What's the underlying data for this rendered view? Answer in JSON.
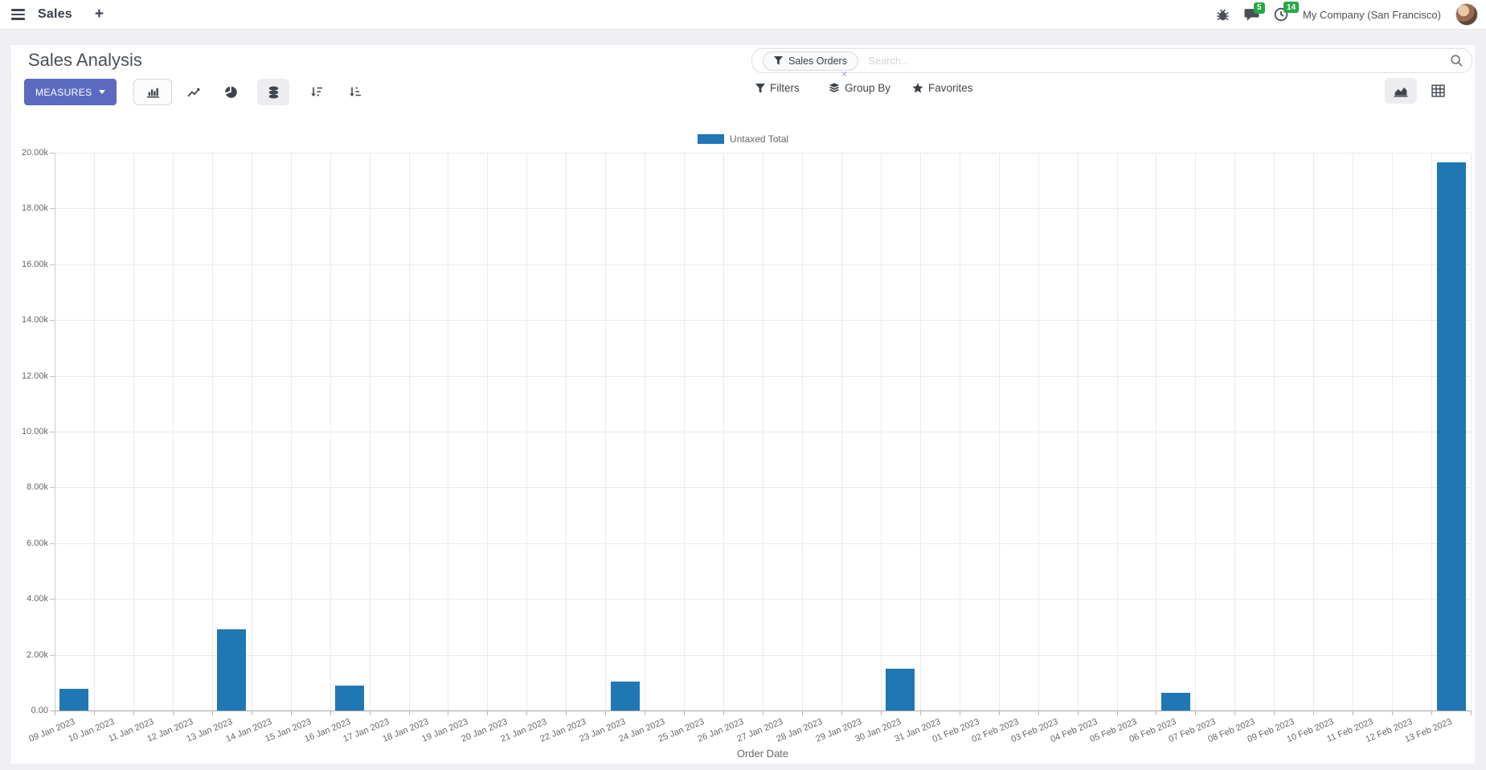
{
  "header": {
    "app_name": "Sales",
    "company": "My Company (San Francisco)",
    "badges": {
      "messages": "5",
      "activities": "14"
    }
  },
  "control_panel": {
    "title": "Sales Analysis",
    "measures_label": "MEASURES",
    "search": {
      "facet_label": "Sales Orders",
      "placeholder": "Search...",
      "facet_remove": "×"
    },
    "buttons": {
      "filters": "Filters",
      "group_by": "Group By",
      "favorites": "Favorites"
    }
  },
  "icons": {
    "menu": "hamburger",
    "new_tab": "plus",
    "debug": "bug",
    "messages": "chat-bubble",
    "activities": "clock",
    "facet": "funnel",
    "search": "magnifier",
    "filters": "funnel",
    "group_by": "layers",
    "favorites": "star",
    "chart_types": [
      "bar-chart",
      "line-chart",
      "pie-chart",
      "stacked-database",
      "sort-descending",
      "sort-ascending"
    ],
    "view_switcher": [
      "area-chart",
      "pivot-grid"
    ]
  },
  "colors": {
    "bar": "#1f77b4",
    "accent_button": "#5c6bc0",
    "badge_green": "#28a745"
  },
  "chart_data": {
    "type": "bar",
    "title": "",
    "xlabel": "Order Date",
    "ylabel": "",
    "ylim": [
      0,
      20000
    ],
    "ytick_step": 2000,
    "ytick_labels": [
      "0.00",
      "2.00k",
      "4.00k",
      "6.00k",
      "8.00k",
      "10.00k",
      "12.00k",
      "14.00k",
      "16.00k",
      "18.00k",
      "20.00k"
    ],
    "grid": true,
    "legend_position": "top",
    "categories": [
      "09 Jan 2023",
      "10 Jan 2023",
      "11 Jan 2023",
      "12 Jan 2023",
      "13 Jan 2023",
      "14 Jan 2023",
      "15 Jan 2023",
      "16 Jan 2023",
      "17 Jan 2023",
      "18 Jan 2023",
      "19 Jan 2023",
      "20 Jan 2023",
      "21 Jan 2023",
      "22 Jan 2023",
      "23 Jan 2023",
      "24 Jan 2023",
      "25 Jan 2023",
      "26 Jan 2023",
      "27 Jan 2023",
      "28 Jan 2023",
      "29 Jan 2023",
      "30 Jan 2023",
      "31 Jan 2023",
      "01 Feb 2023",
      "02 Feb 2023",
      "03 Feb 2023",
      "04 Feb 2023",
      "05 Feb 2023",
      "06 Feb 2023",
      "07 Feb 2023",
      "08 Feb 2023",
      "09 Feb 2023",
      "10 Feb 2023",
      "11 Feb 2023",
      "12 Feb 2023",
      "13 Feb 2023"
    ],
    "series": [
      {
        "name": "Untaxed Total",
        "color": "#1f77b4",
        "values": [
          780,
          0,
          0,
          0,
          2900,
          0,
          0,
          890,
          0,
          0,
          0,
          0,
          0,
          0,
          1040,
          0,
          0,
          0,
          0,
          0,
          0,
          1500,
          0,
          0,
          0,
          0,
          0,
          0,
          630,
          0,
          0,
          0,
          0,
          0,
          0,
          19650
        ]
      }
    ]
  }
}
